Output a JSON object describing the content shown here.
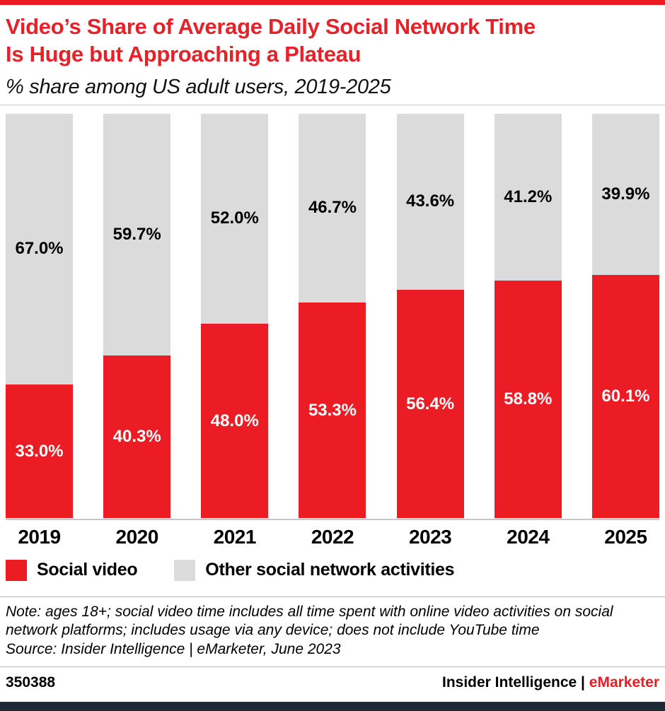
{
  "colors": {
    "accent_red": "#ec1c24",
    "title_red": "#e62128",
    "bar_gray": "#dbdbdb",
    "bottom_bar_navy": "#1e2936"
  },
  "header": {
    "title_line1": "Video’s Share of Average Daily Social Network Time",
    "title_line2": "Is Huge but Approaching a Plateau",
    "subtitle": "% share among US adult users, 2019-2025"
  },
  "chart_data": {
    "type": "bar",
    "stacked": true,
    "categories": [
      "2019",
      "2020",
      "2021",
      "2022",
      "2023",
      "2024",
      "2025"
    ],
    "series": [
      {
        "name": "Social video",
        "color": "#ec1c24",
        "values": [
          33.0,
          40.3,
          48.0,
          53.3,
          56.4,
          58.8,
          60.1
        ]
      },
      {
        "name": "Other social network activities",
        "color": "#dbdbdb",
        "values": [
          67.0,
          59.7,
          52.0,
          46.7,
          43.6,
          41.2,
          39.9
        ]
      }
    ],
    "value_suffix": "%",
    "value_decimals": 1,
    "ylim": [
      0,
      100
    ],
    "grid": false,
    "legend_position": "bottom",
    "title": "Video’s Share of Average Daily Social Network Time Is Huge but Approaching a Plateau",
    "subtitle": "% share among US adult users, 2019-2025"
  },
  "notes": {
    "note": "Note: ages 18+; social video time includes all time spent with online video activities on social network platforms; includes usage via any device; does not include YouTube time",
    "source": "Source: Insider Intelligence | eMarketer, June 2023"
  },
  "footer": {
    "chart_id": "350388",
    "brand_insider": "Insider Intelligence",
    "brand_separator": " | ",
    "brand_emarketer": "eMarketer"
  }
}
